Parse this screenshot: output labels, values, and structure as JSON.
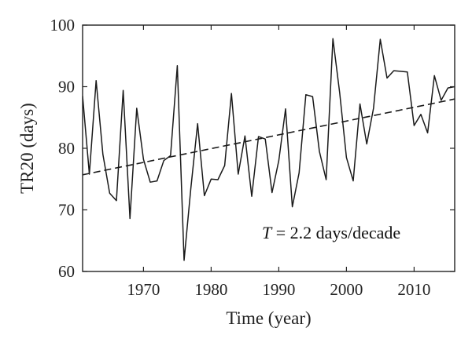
{
  "chart_data": {
    "type": "line",
    "xlabel": "Time (year)",
    "ylabel": "TR20 (days)",
    "xlim": [
      1961,
      2016
    ],
    "ylim": [
      60,
      100
    ],
    "x_ticks": [
      1970,
      1980,
      1990,
      2000,
      2010
    ],
    "y_ticks": [
      60,
      70,
      80,
      90,
      100
    ],
    "grid": false,
    "annotation": {
      "var": "T",
      "text": " = 2.2 days/decade"
    },
    "series": [
      {
        "style": "solid",
        "x": [
          1961,
          1962,
          1963,
          1964,
          1965,
          1966,
          1967,
          1968,
          1969,
          1970,
          1971,
          1972,
          1973,
          1974,
          1975,
          1976,
          1977,
          1978,
          1979,
          1980,
          1981,
          1982,
          1983,
          1984,
          1985,
          1986,
          1987,
          1988,
          1989,
          1990,
          1991,
          1992,
          1993,
          1994,
          1995,
          1996,
          1997,
          1998,
          1999,
          2000,
          2001,
          2002,
          2003,
          2004,
          2005,
          2006,
          2007,
          2008,
          2009,
          2010,
          2011,
          2012,
          2013,
          2014,
          2015,
          2016
        ],
        "y": [
          88.5,
          75.8,
          91,
          79,
          72.7,
          71.5,
          89.4,
          68.6,
          86.5,
          78.2,
          74.5,
          74.7,
          78,
          78.8,
          93.4,
          61.8,
          73.5,
          84,
          72.3,
          75,
          74.9,
          77.2,
          88.9,
          75.8,
          82,
          72.2,
          81.9,
          81.5,
          72.8,
          78,
          86.4,
          70.5,
          76,
          88.7,
          88.4,
          79.5,
          74.9,
          97.8,
          89,
          78.5,
          74.7,
          87.2,
          80.7,
          86.5,
          97.7,
          91.4,
          92.6,
          92.5,
          92.4,
          83.7,
          85.5,
          82.5,
          91.8,
          87.8,
          89.8,
          90
        ]
      },
      {
        "style": "dashed",
        "x": [
          1961,
          2016
        ],
        "y": [
          75.7,
          88.0
        ]
      }
    ]
  }
}
